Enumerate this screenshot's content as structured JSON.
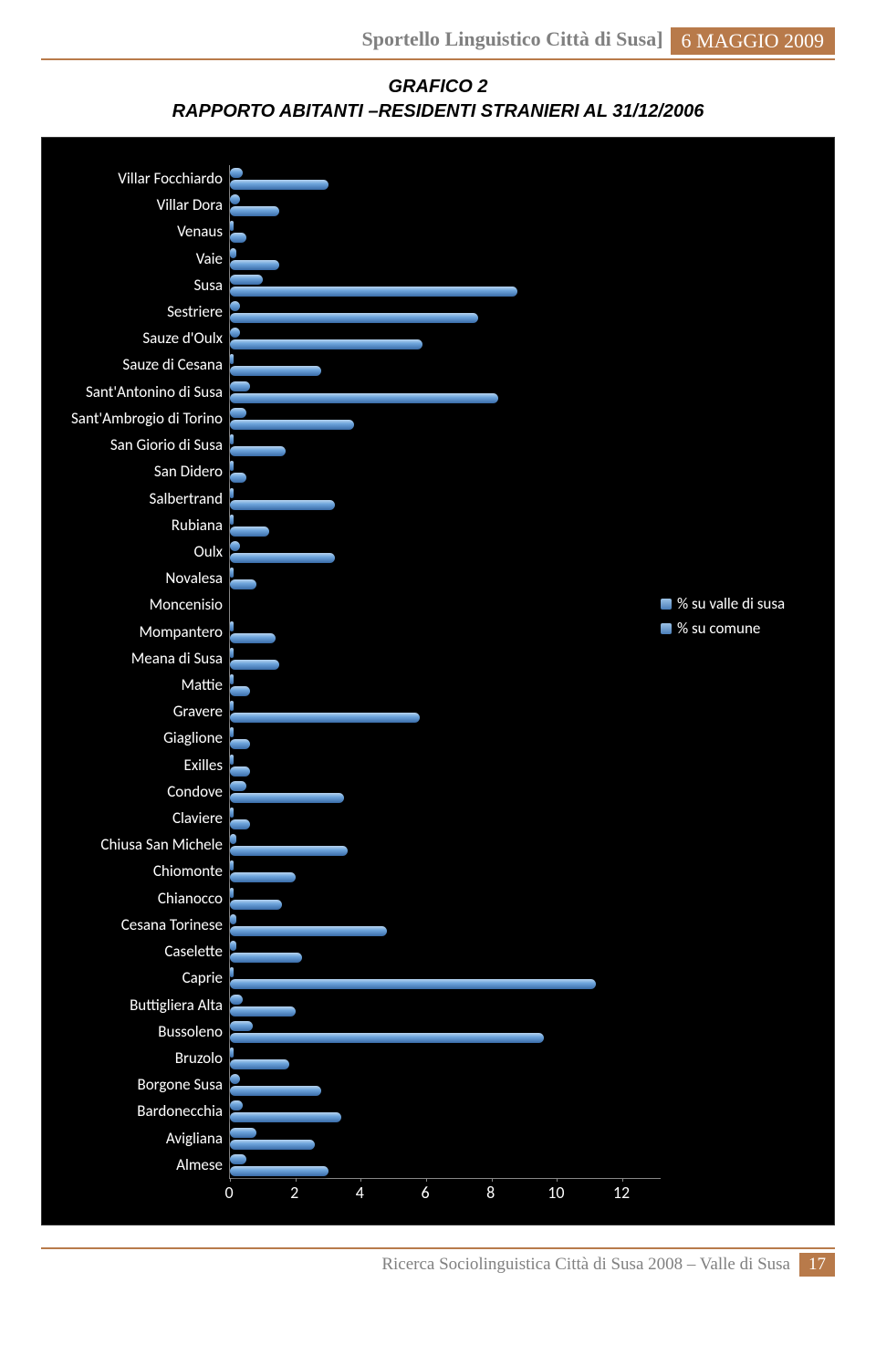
{
  "header": {
    "title": "Sportello Linguistico Città di Susa]",
    "date": "6 MAGGIO 2009"
  },
  "chart": {
    "title_line1": "GRAFICO 2",
    "title_line2": "RAPPORTO ABITANTI –RESIDENTI STRANIERI AL 31/12/2006",
    "type": "bar",
    "xlim": [
      0,
      12
    ],
    "xtick_step": 2,
    "xticks": [
      "0",
      "2",
      "4",
      "6",
      "8",
      "10",
      "12"
    ],
    "background_color": "#000000",
    "bar_color_top": "#b8d4f0",
    "bar_color_mid": "#6ea5dc",
    "bar_color_bot": "#3a6ca8",
    "label_color": "#ffffff",
    "axis_color": "#888888",
    "label_fontsize": 17,
    "tick_fontsize": 18,
    "series_names": [
      "% su valle di susa",
      "% su comune"
    ],
    "categories": [
      {
        "label": "Villar Focchiardo",
        "v1": 0.4,
        "v2": 3.0
      },
      {
        "label": "Villar Dora",
        "v1": 0.3,
        "v2": 1.5
      },
      {
        "label": "Venaus",
        "v1": 0.1,
        "v2": 0.5
      },
      {
        "label": "Vaie",
        "v1": 0.2,
        "v2": 1.5
      },
      {
        "label": "Susa",
        "v1": 1.0,
        "v2": 8.8
      },
      {
        "label": "Sestriere",
        "v1": 0.3,
        "v2": 7.6
      },
      {
        "label": "Sauze d'Oulx",
        "v1": 0.3,
        "v2": 5.9
      },
      {
        "label": "Sauze di Cesana",
        "v1": 0.1,
        "v2": 2.8
      },
      {
        "label": "Sant'Antonino di Susa",
        "v1": 0.6,
        "v2": 8.2
      },
      {
        "label": "Sant'Ambrogio di Torino",
        "v1": 0.5,
        "v2": 3.8
      },
      {
        "label": "San Giorio di Susa",
        "v1": 0.1,
        "v2": 1.7
      },
      {
        "label": "San Didero",
        "v1": 0.1,
        "v2": 0.5
      },
      {
        "label": "Salbertrand",
        "v1": 0.1,
        "v2": 3.2
      },
      {
        "label": "Rubiana",
        "v1": 0.1,
        "v2": 1.2
      },
      {
        "label": "Oulx",
        "v1": 0.3,
        "v2": 3.2
      },
      {
        "label": "Novalesa",
        "v1": 0.1,
        "v2": 0.8
      },
      {
        "label": "Moncenisio",
        "v1": 0.0,
        "v2": 0.0
      },
      {
        "label": "Mompantero",
        "v1": 0.1,
        "v2": 1.4
      },
      {
        "label": "Meana di Susa",
        "v1": 0.1,
        "v2": 1.5
      },
      {
        "label": "Mattie",
        "v1": 0.1,
        "v2": 0.6
      },
      {
        "label": "Gravere",
        "v1": 0.1,
        "v2": 5.8
      },
      {
        "label": "Giaglione",
        "v1": 0.1,
        "v2": 0.6
      },
      {
        "label": "Exilles",
        "v1": 0.1,
        "v2": 0.6
      },
      {
        "label": "Condove",
        "v1": 0.5,
        "v2": 3.5
      },
      {
        "label": "Claviere",
        "v1": 0.1,
        "v2": 0.6
      },
      {
        "label": "Chiusa San Michele",
        "v1": 0.2,
        "v2": 3.6
      },
      {
        "label": "Chiomonte",
        "v1": 0.1,
        "v2": 2.0
      },
      {
        "label": "Chianocco",
        "v1": 0.1,
        "v2": 1.6
      },
      {
        "label": "Cesana Torinese",
        "v1": 0.2,
        "v2": 4.8
      },
      {
        "label": "Caselette",
        "v1": 0.2,
        "v2": 2.2
      },
      {
        "label": "Caprie",
        "v1": 0.1,
        "v2": 11.2
      },
      {
        "label": "Buttigliera Alta",
        "v1": 0.4,
        "v2": 2.0
      },
      {
        "label": "Bussoleno",
        "v1": 0.7,
        "v2": 9.6
      },
      {
        "label": "Bruzolo",
        "v1": 0.1,
        "v2": 1.8
      },
      {
        "label": "Borgone  Susa",
        "v1": 0.3,
        "v2": 2.8
      },
      {
        "label": "Bardonecchia",
        "v1": 0.4,
        "v2": 3.4
      },
      {
        "label": "Avigliana",
        "v1": 0.8,
        "v2": 2.6
      },
      {
        "label": "Almese",
        "v1": 0.5,
        "v2": 3.0
      }
    ]
  },
  "legend": {
    "items": [
      {
        "label": "% su valle di susa"
      },
      {
        "label": "% su comune"
      }
    ]
  },
  "footer": {
    "text": "Ricerca Sociolinguistica Città di Susa 2008 – Valle di Susa",
    "page": "17"
  }
}
